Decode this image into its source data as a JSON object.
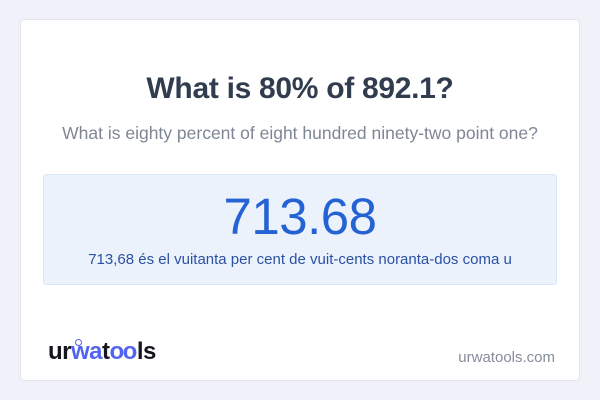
{
  "question": {
    "title": "What is 80% of 892.1?",
    "subtitle": "What is eighty percent of eight hundred ninety-two point one?"
  },
  "result": {
    "value": "713.68",
    "sentence": "713,68 és el vuitanta per cent de vuit-cents noranta-dos coma u"
  },
  "branding": {
    "logo_segments": [
      {
        "text": "ur",
        "color_role": "dark"
      },
      {
        "text": "wa",
        "color_role": "blue"
      },
      {
        "text": "t",
        "color_role": "dark"
      },
      {
        "text": "oo",
        "color_role": "blue"
      },
      {
        "text": "ls",
        "color_role": "dark"
      }
    ],
    "logo_ring_icon": "degree-ring",
    "website": "urwatools.com"
  },
  "colors": {
    "page_background": "#f1f2f9",
    "card_background": "#ffffff",
    "card_border": "#e3e5f1",
    "result_box_background": "#ebf2fc",
    "result_box_border": "#d9e6f8",
    "title_text": "#313d4f",
    "subtitle_text": "#7e8696",
    "result_value_text": "#2563d4",
    "result_sentence_text": "#2b51a3",
    "logo_dark": "#16161e",
    "logo_blue": "#5265f2",
    "footer_text": "#868c9c"
  }
}
